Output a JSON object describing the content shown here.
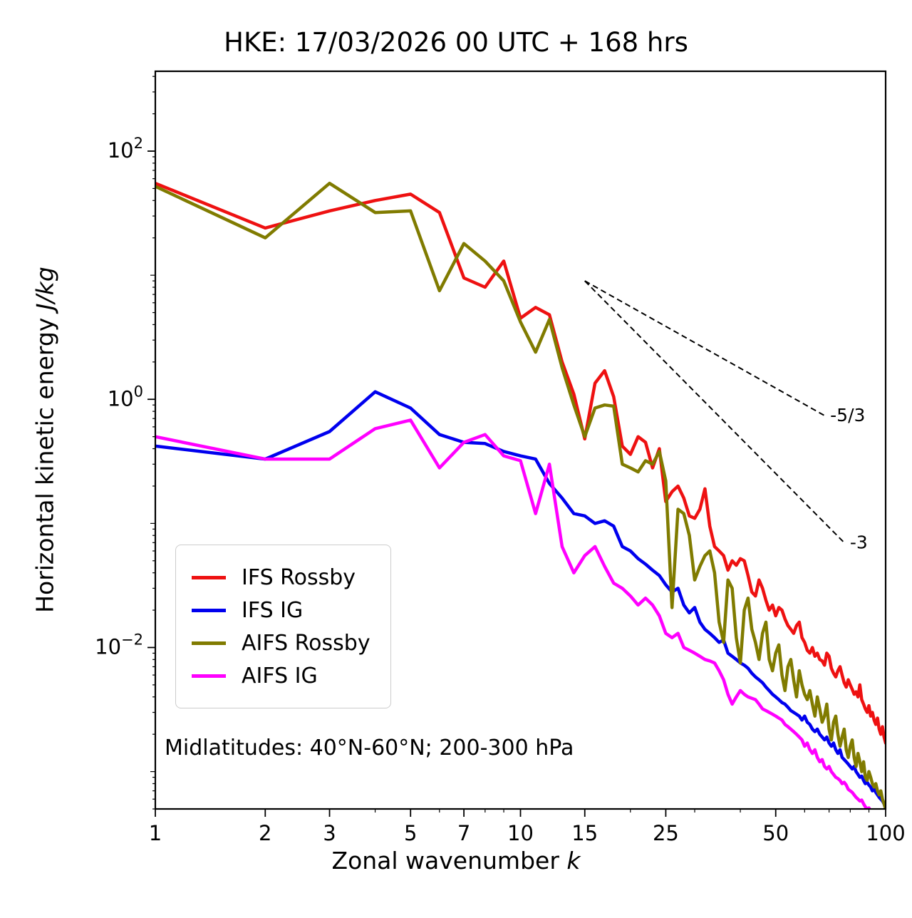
{
  "title": "HKE: 17/03/2026 00 UTC + 168 hrs",
  "annotation": "Midlatitudes: 40°N-60°N; 200-300 hPa",
  "labels": {
    "ylabel_main": "Horizontal kinetic energy ",
    "ylabel_italic": "J/kg",
    "xlabel_main": "Zonal wavenumber ",
    "xlabel_italic": "k"
  },
  "chart_data": {
    "type": "line",
    "title": "HKE: 17/03/2026 00 UTC + 168 hrs",
    "xlabel": "Zonal wavenumber k",
    "ylabel": "Horizontal kinetic energy J/kg",
    "xscale": "log",
    "yscale": "log",
    "xlim": [
      1,
      100
    ],
    "ylim": [
      0.0005,
      440
    ],
    "grid": false,
    "xticks": {
      "values": [
        1,
        2,
        3,
        5,
        7,
        10,
        15,
        25,
        50,
        100
      ],
      "labels": [
        "1",
        "2",
        "3",
        "5",
        "7",
        "10",
        "15",
        "25",
        "50",
        "100"
      ]
    },
    "xminor": [
      4,
      6,
      8,
      9,
      20,
      30,
      40,
      60,
      70,
      80,
      90
    ],
    "yticks": {
      "values": [
        100,
        1,
        0.01
      ],
      "exponents": [
        2,
        0,
        -2
      ]
    },
    "legend_position": "lower left",
    "series": [
      {
        "name": "IFS Rossby",
        "color": "#ee1111",
        "x_range": [
          1,
          100
        ],
        "values": [
          55,
          24,
          33,
          40,
          45,
          32,
          9.5,
          8.0,
          13,
          4.5,
          5.5,
          4.8,
          2.0,
          1.1,
          0.48,
          1.35,
          1.7,
          1.05,
          0.42,
          0.36,
          0.5,
          0.45,
          0.28,
          0.4,
          0.15,
          0.18,
          0.2,
          0.16,
          0.115,
          0.11,
          0.13,
          0.19,
          0.095,
          0.065,
          0.06,
          0.055,
          0.042,
          0.05,
          0.046,
          0.052,
          0.05,
          0.038,
          0.028,
          0.026,
          0.035,
          0.03,
          0.024,
          0.02,
          0.022,
          0.018,
          0.021,
          0.02,
          0.017,
          0.015,
          0.014,
          0.013,
          0.015,
          0.016,
          0.012,
          0.011,
          0.0095,
          0.009,
          0.01,
          0.0085,
          0.009,
          0.008,
          0.0078,
          0.0072,
          0.009,
          0.0085,
          0.0068,
          0.0062,
          0.0058,
          0.0065,
          0.007,
          0.006,
          0.0052,
          0.0048,
          0.0055,
          0.005,
          0.0046,
          0.0042,
          0.0044,
          0.004,
          0.005,
          0.0038,
          0.0035,
          0.0032,
          0.003,
          0.0034,
          0.0028,
          0.003,
          0.0026,
          0.0024,
          0.0027,
          0.0022,
          0.002,
          0.0023,
          0.0019,
          0.0017
        ]
      },
      {
        "name": "IFS IG",
        "color": "#0000ee",
        "x_range": [
          1,
          100
        ],
        "values": [
          0.42,
          0.33,
          0.55,
          1.15,
          0.85,
          0.52,
          0.45,
          0.44,
          0.38,
          0.35,
          0.33,
          0.21,
          0.16,
          0.12,
          0.115,
          0.1,
          0.105,
          0.095,
          0.065,
          0.06,
          0.052,
          0.047,
          0.042,
          0.038,
          0.032,
          0.028,
          0.03,
          0.022,
          0.019,
          0.021,
          0.016,
          0.014,
          0.013,
          0.012,
          0.011,
          0.0115,
          0.009,
          0.0085,
          0.008,
          0.0075,
          0.0072,
          0.0068,
          0.0062,
          0.0058,
          0.0055,
          0.0052,
          0.0048,
          0.0045,
          0.0042,
          0.004,
          0.0038,
          0.0036,
          0.0035,
          0.0033,
          0.0031,
          0.003,
          0.0029,
          0.0028,
          0.0026,
          0.0028,
          0.0025,
          0.0024,
          0.0022,
          0.0021,
          0.0022,
          0.002,
          0.0019,
          0.0018,
          0.0019,
          0.0017,
          0.0016,
          0.0017,
          0.0015,
          0.0014,
          0.0015,
          0.0013,
          0.00125,
          0.0012,
          0.00115,
          0.0011,
          0.00105,
          0.0011,
          0.001,
          0.00095,
          0.0009,
          0.00092,
          0.00085,
          0.0008,
          0.00082,
          0.00078,
          0.00075,
          0.0007,
          0.00072,
          0.00068,
          0.00065,
          0.00062,
          0.0006,
          0.00058,
          0.00055,
          0.0005
        ]
      },
      {
        "name": "AIFS Rossby",
        "color": "#807b00",
        "x_range": [
          1,
          100
        ],
        "values": [
          52,
          20,
          55,
          32,
          33,
          7.5,
          18,
          13,
          9,
          4.2,
          2.4,
          4.4,
          1.8,
          0.9,
          0.5,
          0.85,
          0.9,
          0.88,
          0.3,
          0.28,
          0.26,
          0.32,
          0.3,
          0.38,
          0.22,
          0.021,
          0.13,
          0.12,
          0.08,
          0.035,
          0.045,
          0.055,
          0.06,
          0.04,
          0.016,
          0.011,
          0.035,
          0.03,
          0.012,
          0.0075,
          0.02,
          0.025,
          0.014,
          0.011,
          0.008,
          0.013,
          0.016,
          0.008,
          0.0065,
          0.009,
          0.0105,
          0.006,
          0.0045,
          0.007,
          0.008,
          0.0055,
          0.004,
          0.0065,
          0.005,
          0.0042,
          0.0038,
          0.0045,
          0.0035,
          0.0028,
          0.004,
          0.0032,
          0.0025,
          0.0028,
          0.0035,
          0.0022,
          0.0018,
          0.0025,
          0.0028,
          0.002,
          0.0016,
          0.0019,
          0.0022,
          0.0015,
          0.0013,
          0.0016,
          0.0018,
          0.0013,
          0.0011,
          0.0014,
          0.0012,
          0.001,
          0.0012,
          0.0009,
          0.00085,
          0.001,
          0.0009,
          0.0008,
          0.00075,
          0.0008,
          0.0007,
          0.00065,
          0.0007,
          0.0006,
          0.00055,
          0.0005
        ]
      },
      {
        "name": "AIFS IG",
        "color": "#ff00ff",
        "x_range": [
          1,
          100
        ],
        "values": [
          0.5,
          0.33,
          0.33,
          0.58,
          0.68,
          0.28,
          0.45,
          0.52,
          0.35,
          0.32,
          0.12,
          0.3,
          0.065,
          0.04,
          0.055,
          0.065,
          0.045,
          0.033,
          0.03,
          0.026,
          0.022,
          0.025,
          0.022,
          0.018,
          0.013,
          0.012,
          0.013,
          0.01,
          0.0095,
          0.009,
          0.0085,
          0.008,
          0.0078,
          0.0075,
          0.0065,
          0.0055,
          0.0042,
          0.0035,
          0.004,
          0.0045,
          0.0042,
          0.004,
          0.0039,
          0.0038,
          0.0035,
          0.0032,
          0.0031,
          0.003,
          0.0029,
          0.0028,
          0.0027,
          0.0026,
          0.0024,
          0.0023,
          0.0022,
          0.0021,
          0.002,
          0.0019,
          0.0018,
          0.0016,
          0.0017,
          0.0015,
          0.0014,
          0.0015,
          0.0013,
          0.0012,
          0.00125,
          0.0011,
          0.00105,
          0.0011,
          0.001,
          0.00095,
          0.0009,
          0.00088,
          0.00085,
          0.0008,
          0.00082,
          0.00078,
          0.00072,
          0.0007,
          0.00068,
          0.00065,
          0.00062,
          0.0006,
          0.00058,
          0.00059,
          0.00055,
          0.00052,
          0.0005,
          0.00051,
          0.00048,
          0.00046,
          0.00044,
          0.00045,
          0.00042,
          0.0004,
          0.00041,
          0.00039,
          0.00038,
          0.00036
        ]
      }
    ],
    "reference_lines": [
      {
        "label": "-5/3",
        "x": [
          15,
          68
        ],
        "y": [
          9,
          0.74
        ],
        "style": "dashed",
        "color": "#000000"
      },
      {
        "label": "-3",
        "x": [
          15,
          77
        ],
        "y": [
          9,
          0.07
        ],
        "style": "dashed",
        "color": "#000000"
      }
    ]
  }
}
